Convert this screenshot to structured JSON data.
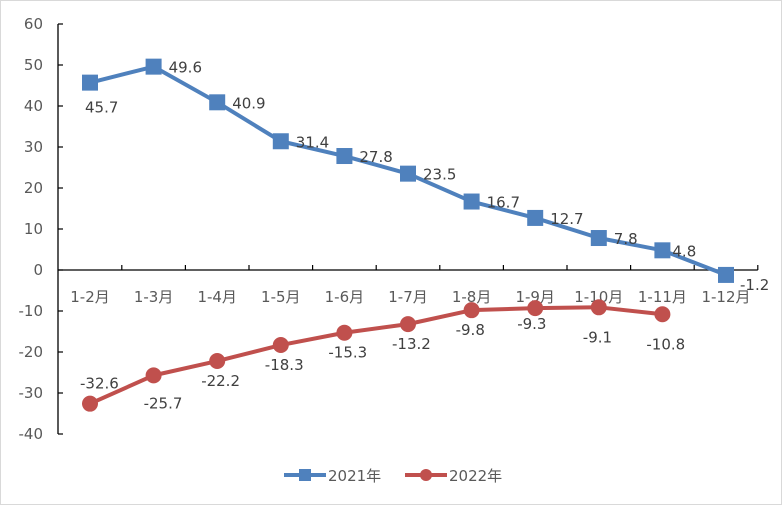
{
  "chart_data": {
    "type": "line",
    "title": "",
    "xlabel": "",
    "ylabel": "",
    "categories": [
      "1-2月",
      "1-3月",
      "1-4月",
      "1-5月",
      "1-6月",
      "1-7月",
      "1-8月",
      "1-9月",
      "1-10月",
      "1-11月",
      "1-12月"
    ],
    "ylim": [
      -40,
      60
    ],
    "yticks": [
      60,
      50,
      40,
      30,
      20,
      10,
      0,
      -10,
      -20,
      -30,
      -40
    ],
    "grid": false,
    "legend_position": "bottom",
    "series": [
      {
        "name": "2021年",
        "color": "#4f81bd",
        "marker": "square",
        "values": [
          45.7,
          49.6,
          40.9,
          31.4,
          27.8,
          23.5,
          16.7,
          12.7,
          7.8,
          4.8,
          -1.2
        ],
        "labels": [
          "45.7",
          "49.6",
          "40.9",
          "31.4",
          "27.8",
          "23.5",
          "16.7",
          "12.7",
          "7.8",
          "4.8",
          "-1.2"
        ]
      },
      {
        "name": "2022年",
        "color": "#c0504d",
        "marker": "circle",
        "values": [
          -32.6,
          -25.7,
          -22.2,
          -18.3,
          -15.3,
          -13.2,
          -9.8,
          -9.3,
          -9.1,
          -10.8,
          null
        ],
        "labels": [
          "-32.6",
          "-25.7",
          "-22.2",
          "-18.3",
          "-15.3",
          "-13.2",
          "-9.8",
          "-9.3",
          "-9.1",
          "-10.8",
          null
        ]
      }
    ]
  }
}
